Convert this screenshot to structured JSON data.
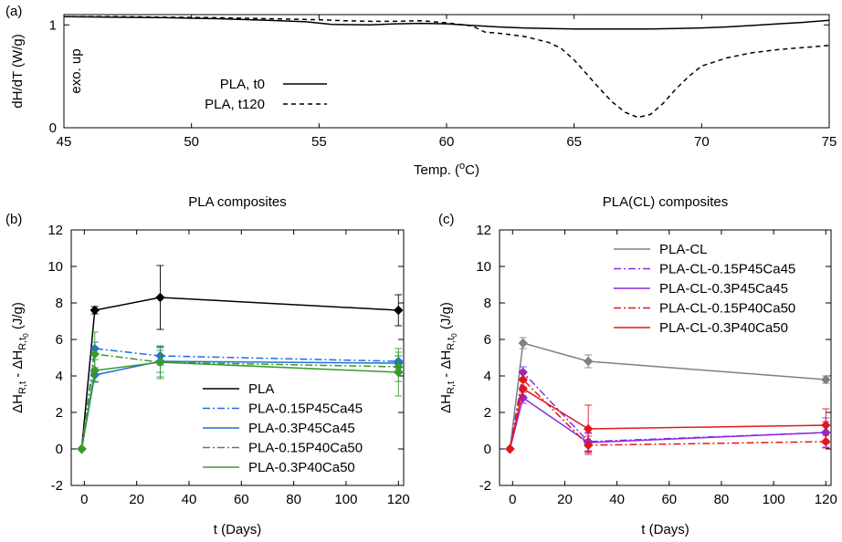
{
  "chart_data": [
    {
      "panel": "(a)",
      "type": "line",
      "title": "",
      "xlabel": "Temp. (",
      "xlabel_sup": "o",
      "xlabel_unit": "C)",
      "ylabel": "dH/dT (W/g)",
      "annotation": "exo. up",
      "xlim": [
        45,
        75
      ],
      "ylim": [
        0,
        1.1
      ],
      "xticks": [
        45,
        50,
        55,
        60,
        65,
        70,
        75
      ],
      "yticks": [
        0,
        1
      ],
      "grid": false,
      "legend_position": "middle-left",
      "series": [
        {
          "name": "PLA, t0",
          "color": "#000000",
          "dash": "solid",
          "x": [
            45,
            47,
            49,
            51,
            53,
            54.5,
            55.5,
            57,
            58,
            59,
            60,
            61,
            62,
            63,
            64,
            65,
            66,
            67,
            68,
            69,
            70,
            71,
            72,
            73,
            74,
            75
          ],
          "y": [
            1.08,
            1.075,
            1.07,
            1.06,
            1.045,
            1.03,
            1.005,
            1.0,
            1.01,
            1.015,
            1.01,
            0.995,
            0.98,
            0.97,
            0.965,
            0.96,
            0.96,
            0.96,
            0.96,
            0.965,
            0.97,
            0.98,
            0.995,
            1.01,
            1.025,
            1.045
          ]
        },
        {
          "name": "PLA, t120",
          "color": "#000000",
          "dash": "dashed",
          "x": [
            45,
            47,
            49,
            51,
            53,
            55,
            56,
            57,
            58,
            59,
            60,
            61,
            61.5,
            62,
            63,
            64,
            64.5,
            65,
            65.5,
            66,
            66.5,
            67,
            67.5,
            68,
            68.5,
            69,
            69.5,
            70,
            71,
            72,
            73,
            74,
            75
          ],
          "y": [
            1.08,
            1.08,
            1.075,
            1.07,
            1.06,
            1.05,
            1.04,
            1.035,
            1.035,
            1.04,
            1.02,
            0.99,
            0.93,
            0.92,
            0.89,
            0.83,
            0.77,
            0.66,
            0.52,
            0.38,
            0.25,
            0.15,
            0.1,
            0.13,
            0.24,
            0.38,
            0.5,
            0.6,
            0.68,
            0.73,
            0.76,
            0.78,
            0.8
          ]
        }
      ]
    },
    {
      "panel": "(b)",
      "type": "line",
      "title": "PLA composites",
      "xlabel": "t (Days)",
      "ylabel_parts": [
        "ΔH",
        "R,t",
        " - ΔH",
        "R,t",
        "0",
        " (J/g)"
      ],
      "xlim": [
        -5,
        122
      ],
      "ylim": [
        -2,
        12
      ],
      "xticks": [
        0,
        20,
        40,
        60,
        80,
        100,
        120
      ],
      "yticks": [
        -2,
        0,
        2,
        4,
        6,
        8,
        10,
        12
      ],
      "grid": false,
      "legend_position": "bottom-right",
      "x": [
        -1,
        4,
        29,
        120
      ],
      "series": [
        {
          "name": "PLA",
          "color": "#000000",
          "dash": "solid",
          "marker": "diamond",
          "values": [
            0,
            7.6,
            8.3,
            7.6
          ],
          "errors": [
            0,
            0.2,
            1.75,
            0.85
          ]
        },
        {
          "name": "PLA-0.15P45Ca45",
          "color": "#1f6fd6",
          "dash": "dashdot",
          "marker": "diamond",
          "values": [
            0,
            5.5,
            5.1,
            4.8
          ],
          "errors": [
            0,
            0.35,
            0.5,
            0.3
          ]
        },
        {
          "name": "PLA-0.3P45Ca45",
          "color": "#1f6fd6",
          "dash": "solid",
          "marker": "diamond",
          "values": [
            0,
            4.05,
            4.8,
            4.7
          ],
          "errors": [
            0,
            0.4,
            0.6,
            0.4
          ]
        },
        {
          "name": "PLA-0.15P40Ca50",
          "color": "#3a9a2a",
          "dash": "dashdot",
          "marker": "diamond",
          "values": [
            0,
            5.2,
            4.75,
            4.5
          ],
          "errors": [
            0,
            1.2,
            0.8,
            0.8
          ]
        },
        {
          "name": "PLA-0.3P40Ca50",
          "color": "#3a9a2a",
          "dash": "solid",
          "marker": "diamond",
          "values": [
            0,
            4.3,
            4.75,
            4.2
          ],
          "errors": [
            0,
            0.6,
            0.9,
            1.3
          ]
        }
      ]
    },
    {
      "panel": "(c)",
      "type": "line",
      "title": "PLA(CL) composites",
      "xlabel": "t (Days)",
      "ylabel_parts": [
        "ΔH",
        "R,t",
        " - ΔH",
        "R,t",
        "0",
        " (J/g)"
      ],
      "xlim": [
        -5,
        122
      ],
      "ylim": [
        -2,
        12
      ],
      "xticks": [
        0,
        20,
        40,
        60,
        80,
        100,
        120
      ],
      "yticks": [
        -2,
        0,
        2,
        4,
        6,
        8,
        10,
        12
      ],
      "grid": false,
      "legend_position": "top-right",
      "x": [
        -1,
        4,
        29,
        120
      ],
      "series": [
        {
          "name": "PLA-CL",
          "color": "#808080",
          "dash": "solid",
          "marker": "diamond",
          "values": [
            0,
            5.8,
            4.8,
            3.8
          ],
          "errors": [
            0,
            0.3,
            0.35,
            0.2
          ]
        },
        {
          "name": "PLA-CL-0.15P45Ca45",
          "color": "#8a2be2",
          "dash": "dashdot",
          "marker": "diamond",
          "values": [
            0,
            4.2,
            0.4,
            0.9
          ],
          "errors": [
            0,
            0.3,
            0.5,
            0.6
          ]
        },
        {
          "name": "PLA-CL-0.3P45Ca45",
          "color": "#8a2be2",
          "dash": "solid",
          "marker": "diamond",
          "values": [
            0,
            2.8,
            0.35,
            0.9
          ],
          "errors": [
            0,
            0.3,
            0.5,
            0.8
          ]
        },
        {
          "name": "PLA-CL-0.15P40Ca50",
          "color": "#e4161b",
          "dash": "dashdot",
          "marker": "diamond",
          "values": [
            0,
            3.8,
            0.2,
            0.4
          ],
          "errors": [
            0,
            0.4,
            0.5,
            0.35
          ]
        },
        {
          "name": "PLA-CL-0.3P40Ca50",
          "color": "#e4161b",
          "dash": "solid",
          "marker": "diamond",
          "values": [
            0,
            3.3,
            1.1,
            1.3
          ],
          "errors": [
            0,
            0.4,
            1.3,
            0.9
          ]
        }
      ]
    }
  ]
}
